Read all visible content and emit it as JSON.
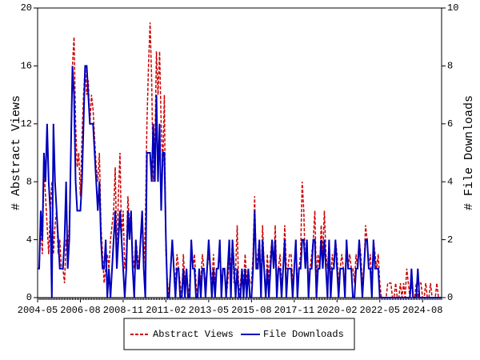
{
  "chart_data": {
    "type": "line",
    "ylabel": "# Abstract Views",
    "y2label": "# File Downloads",
    "ylim": [
      0,
      20
    ],
    "yticks": [
      0,
      4,
      8,
      12,
      16,
      20
    ],
    "y2lim": [
      0,
      10
    ],
    "y2ticks": [
      0,
      2,
      4,
      6,
      8,
      10
    ],
    "legend": "bottom",
    "categories": [
      "2004-05",
      null,
      null,
      null,
      null,
      null,
      null,
      null,
      null,
      null,
      null,
      null,
      null,
      null,
      null,
      null,
      null,
      null,
      null,
      null,
      null,
      null,
      null,
      null,
      null,
      null,
      null,
      "2006-08",
      null,
      null,
      null,
      null,
      null,
      null,
      null,
      null,
      null,
      null,
      null,
      null,
      null,
      null,
      null,
      null,
      null,
      null,
      null,
      null,
      null,
      null,
      null,
      null,
      null,
      null,
      "2008-11",
      null,
      null,
      null,
      null,
      null,
      null,
      null,
      null,
      null,
      null,
      null,
      null,
      null,
      null,
      null,
      null,
      null,
      null,
      null,
      null,
      null,
      null,
      null,
      null,
      null,
      null,
      "2011-02",
      null,
      null,
      null,
      null,
      null,
      null,
      null,
      null,
      null,
      null,
      null,
      null,
      null,
      null,
      null,
      null,
      null,
      null,
      null,
      null,
      null,
      null,
      null,
      null,
      null,
      null,
      "2013-05",
      null,
      null,
      null,
      null,
      null,
      null,
      null,
      null,
      null,
      null,
      null,
      null,
      null,
      null,
      null,
      null,
      null,
      null,
      null,
      null,
      null,
      null,
      null,
      null,
      null,
      null,
      "2015-08",
      null,
      null,
      null,
      null,
      null,
      null,
      null,
      null,
      null,
      null,
      null,
      null,
      null,
      null,
      null,
      null,
      null,
      null,
      null,
      null,
      null,
      null,
      null,
      null,
      null,
      null,
      "2017-11",
      null,
      null,
      null,
      null,
      null,
      null,
      null,
      null,
      null,
      null,
      null,
      null,
      null,
      null,
      null,
      null,
      null,
      null,
      null,
      null,
      null,
      null,
      null,
      null,
      null,
      null,
      "2020-02",
      null,
      null,
      null,
      null,
      null,
      null,
      null,
      null,
      null,
      null,
      null,
      null,
      null,
      null,
      null,
      null,
      null,
      null,
      null,
      null,
      null,
      null,
      null,
      null,
      null,
      null,
      "2022-05",
      null,
      null,
      null,
      null,
      null,
      null,
      null,
      null,
      null,
      null,
      null,
      null,
      null,
      null,
      null,
      null,
      null,
      null,
      null,
      null,
      null,
      null,
      null,
      null,
      null,
      null,
      "2024-08",
      null,
      null,
      null,
      null,
      null,
      null,
      null,
      null,
      null,
      null,
      null,
      null
    ],
    "series": [
      {
        "name": "Abstract Views",
        "color": "#cc0000",
        "dashed": true,
        "values": [
          2,
          2,
          5,
          3,
          9,
          7,
          5,
          3,
          6,
          8,
          3,
          5,
          6,
          3,
          4,
          2,
          2,
          1,
          4,
          3,
          5,
          10,
          16,
          18,
          12,
          9,
          10,
          7,
          11,
          14,
          16,
          14,
          15,
          12,
          14,
          13,
          11,
          9,
          8,
          10,
          5,
          3,
          1,
          2,
          3,
          2,
          4,
          5,
          6,
          9,
          3,
          7,
          10,
          4,
          6,
          2,
          3,
          7,
          5,
          6,
          3,
          2,
          4,
          3,
          2,
          4,
          5,
          2,
          5,
          12,
          16,
          19,
          15,
          8,
          10,
          17,
          14,
          17,
          12,
          9,
          14,
          3,
          1,
          0,
          2,
          4,
          2,
          1,
          3,
          2,
          1,
          0,
          3,
          1,
          2,
          0,
          1,
          4,
          2,
          3,
          1,
          0,
          2,
          1,
          3,
          2,
          1,
          2,
          3,
          2,
          1,
          3,
          1,
          2,
          2,
          3,
          1,
          2,
          2,
          0,
          1,
          3,
          2,
          4,
          1,
          2,
          5,
          0,
          1,
          2,
          1,
          3,
          1,
          2,
          1,
          1,
          3,
          7,
          2,
          3,
          4,
          1,
          5,
          2,
          0,
          3,
          1,
          3,
          4,
          2,
          5,
          1,
          2,
          3,
          1,
          2,
          5,
          2,
          2,
          3,
          3,
          1,
          2,
          4,
          1,
          2,
          3,
          8,
          6,
          2,
          4,
          1,
          2,
          3,
          4,
          6,
          1,
          3,
          2,
          5,
          3,
          6,
          3,
          2,
          4,
          1,
          3,
          2,
          4,
          3,
          1,
          2,
          3,
          2,
          1,
          4,
          2,
          3,
          2,
          2,
          1,
          3,
          2,
          4,
          3,
          1,
          2,
          5,
          4,
          2,
          3,
          1,
          4,
          3,
          2,
          3,
          1,
          0,
          0,
          0,
          0,
          1,
          1,
          1,
          0,
          0,
          1,
          0,
          0,
          1,
          0,
          1,
          0,
          2,
          1,
          0,
          1,
          0,
          0,
          1,
          0,
          1,
          1,
          0,
          0,
          1,
          0,
          0,
          1,
          0,
          0,
          0,
          1,
          0,
          0,
          0
        ]
      },
      {
        "name": "File Downloads",
        "color": "#0000bb",
        "dashed": false,
        "axis": "y2",
        "values": [
          1,
          1,
          3,
          2,
          5,
          4,
          6,
          4,
          3,
          0,
          6,
          4,
          3,
          2,
          1,
          1,
          1,
          2,
          4,
          1,
          2,
          5,
          8,
          7,
          4,
          3,
          3,
          3,
          4,
          6,
          8,
          8,
          7,
          6,
          6,
          6,
          5,
          4,
          3,
          4,
          2,
          1,
          1,
          2,
          0,
          1,
          0,
          1,
          2,
          3,
          1,
          2,
          3,
          2,
          1,
          0,
          1,
          3,
          2,
          3,
          1,
          0,
          2,
          1,
          1,
          2,
          3,
          1,
          0,
          5,
          5,
          5,
          4,
          6,
          4,
          7,
          4,
          6,
          3,
          5,
          5,
          2,
          0,
          0,
          1,
          2,
          1,
          0,
          1,
          1,
          0,
          0,
          1,
          0,
          1,
          0,
          0,
          2,
          1,
          1,
          0,
          0,
          1,
          0,
          1,
          1,
          0,
          1,
          2,
          1,
          0,
          1,
          0,
          1,
          1,
          2,
          0,
          1,
          1,
          0,
          1,
          2,
          0,
          2,
          1,
          0,
          1,
          0,
          0,
          1,
          0,
          1,
          0,
          1,
          0,
          0,
          1,
          3,
          1,
          1,
          2,
          0,
          2,
          1,
          0,
          1,
          0,
          1,
          2,
          1,
          2,
          0,
          1,
          1,
          0,
          1,
          2,
          0,
          1,
          1,
          1,
          0,
          1,
          2,
          0,
          1,
          1,
          2,
          2,
          1,
          2,
          0,
          1,
          1,
          2,
          2,
          0,
          1,
          1,
          2,
          1,
          2,
          1,
          0,
          2,
          0,
          1,
          1,
          2,
          1,
          0,
          1,
          1,
          1,
          0,
          2,
          1,
          1,
          1,
          0,
          0,
          1,
          1,
          2,
          1,
          0,
          1,
          2,
          2,
          1,
          1,
          0,
          2,
          1,
          1,
          1,
          0,
          0,
          0,
          0,
          0,
          0,
          0,
          0,
          0,
          0,
          0,
          0,
          0,
          0,
          0,
          0,
          0,
          0,
          0,
          0,
          1,
          0,
          0,
          0,
          1,
          0,
          0,
          0,
          0,
          0,
          0,
          0,
          0,
          0,
          0,
          0,
          0,
          0,
          0,
          0
        ]
      }
    ]
  }
}
